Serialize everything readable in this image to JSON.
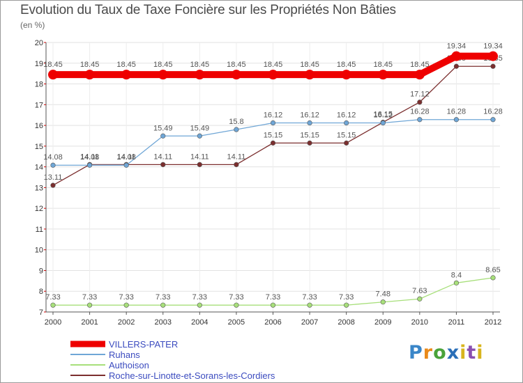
{
  "title": "Evolution du Taux de Taxe Foncière sur les Propriétés Non Bâties",
  "subtitle": "(en %)",
  "logo": "Proxiti",
  "chart_data": {
    "type": "line",
    "title": "Evolution du Taux de Taxe Foncière sur les Propriétés Non Bâties",
    "ylabel": "(en %)",
    "xlabel": "",
    "ylim": [
      7,
      20
    ],
    "yticks": [
      "7",
      "8",
      "9",
      "10",
      "11",
      "12",
      "13",
      "14",
      "15",
      "16",
      "17",
      "18",
      "19",
      "20"
    ],
    "categories": [
      "2000",
      "2001",
      "2002",
      "2003",
      "2004",
      "2005",
      "2006",
      "2007",
      "2008",
      "2009",
      "2010",
      "2011",
      "2012"
    ],
    "grid": true,
    "legend": "bottom-left",
    "series": [
      {
        "name": "Roche-sur-Linotte-et-Sorans-les-Cordiers",
        "color": "#7b2e2e",
        "values": [
          13.11,
          14.11,
          14.11,
          14.11,
          14.11,
          14.11,
          15.15,
          15.15,
          15.15,
          16.15,
          17.12,
          18.85,
          18.85
        ],
        "labels": [
          "13.11",
          "14.11",
          "14.11",
          "14.11",
          "14.11",
          "14.11",
          "15.15",
          "15.15",
          "15.15",
          "16.15",
          "17.12",
          "18.85",
          "18.85"
        ]
      },
      {
        "name": "Ruhans",
        "color": "#6fa6d6",
        "values": [
          14.08,
          14.08,
          14.08,
          15.49,
          15.49,
          15.8,
          16.12,
          16.12,
          16.12,
          16.12,
          16.28,
          16.28,
          16.28
        ],
        "labels": [
          "14.08",
          "14.08",
          "14.08",
          "15.49",
          "15.49",
          "15.8",
          "16.12",
          "16.12",
          "16.12",
          "16.12",
          "16.28",
          "16.28",
          "16.28"
        ]
      },
      {
        "name": "Authoison",
        "color": "#a7df7a",
        "values": [
          7.33,
          7.33,
          7.33,
          7.33,
          7.33,
          7.33,
          7.33,
          7.33,
          7.33,
          7.48,
          7.63,
          8.4,
          8.65
        ],
        "labels": [
          "7.33",
          "7.33",
          "7.33",
          "7.33",
          "7.33",
          "7.33",
          "7.33",
          "7.33",
          "7.33",
          "7.48",
          "7.63",
          "8.4",
          "8.65"
        ]
      },
      {
        "name": "VILLERS-PATER",
        "color": "#ee0000",
        "values": [
          18.45,
          18.45,
          18.45,
          18.45,
          18.45,
          18.45,
          18.45,
          18.45,
          18.45,
          18.45,
          18.45,
          19.34,
          19.34
        ],
        "labels": [
          "18.45",
          "18.45",
          "18.45",
          "18.45",
          "18.45",
          "18.45",
          "18.45",
          "18.45",
          "18.45",
          "18.45",
          "18.45",
          "19.34",
          "19.34"
        ]
      }
    ],
    "legend_order": [
      "VILLERS-PATER",
      "Ruhans",
      "Authoison",
      "Roche-sur-Linotte-et-Sorans-les-Cordiers"
    ]
  }
}
